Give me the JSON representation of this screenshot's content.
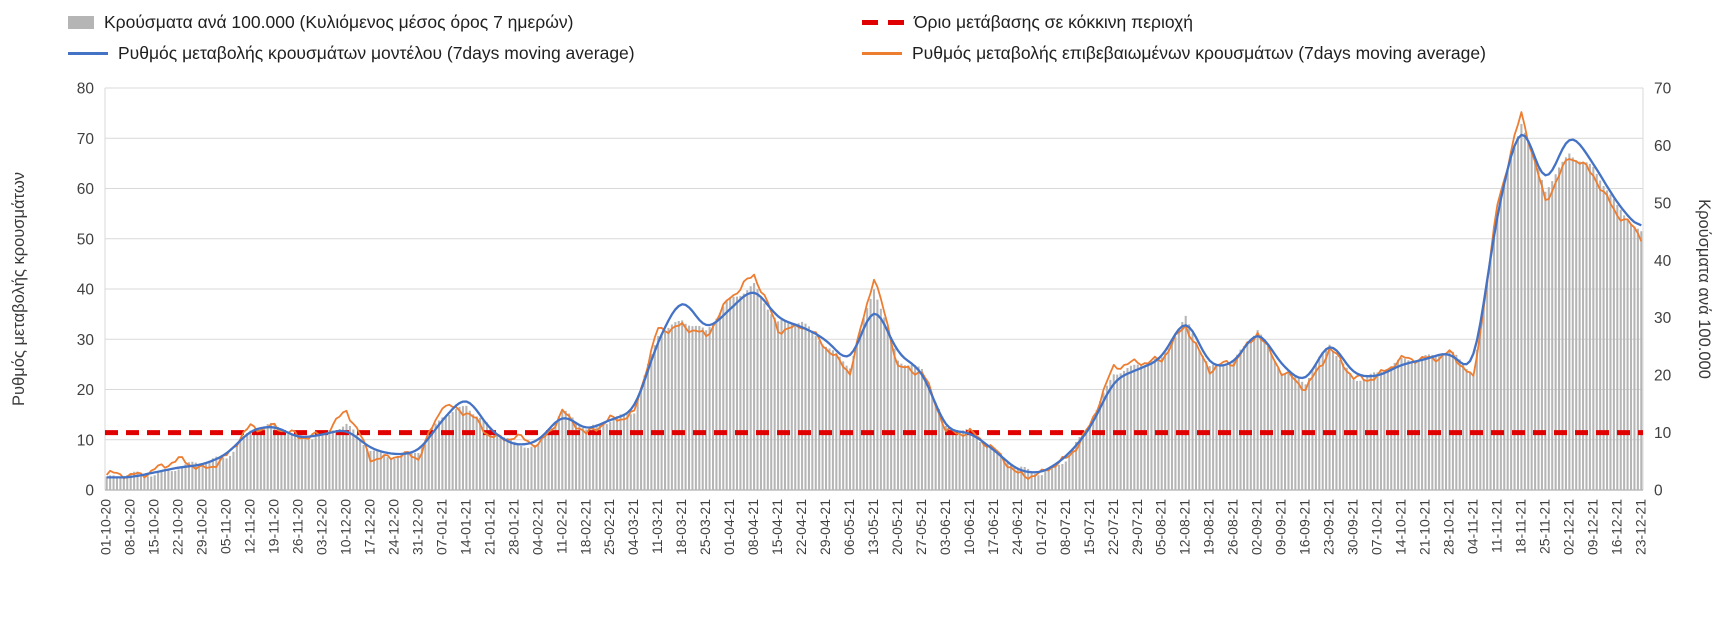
{
  "chart_data": {
    "type": "bar+line",
    "legend_position": "top",
    "grid": true,
    "x_tick_labels": [
      "01-10-20",
      "08-10-20",
      "15-10-20",
      "22-10-20",
      "29-10-20",
      "05-11-20",
      "12-11-20",
      "19-11-20",
      "26-11-20",
      "03-12-20",
      "10-12-20",
      "17-12-20",
      "24-12-20",
      "31-12-20",
      "07-01-21",
      "14-01-21",
      "21-01-21",
      "28-01-21",
      "04-02-21",
      "11-02-21",
      "18-02-21",
      "25-02-21",
      "04-03-21",
      "11-03-21",
      "18-03-21",
      "25-03-21",
      "01-04-21",
      "08-04-21",
      "15-04-21",
      "22-04-21",
      "29-04-21",
      "06-05-21",
      "13-05-21",
      "20-05-21",
      "27-05-21",
      "03-06-21",
      "10-06-21",
      "17-06-21",
      "24-06-21",
      "01-07-21",
      "08-07-21",
      "15-07-21",
      "22-07-21",
      "29-07-21",
      "05-08-21",
      "12-08-21",
      "19-08-21",
      "26-08-21",
      "02-09-21",
      "09-09-21",
      "16-09-21",
      "23-09-21",
      "30-09-21",
      "07-10-21",
      "14-10-21",
      "21-10-21",
      "28-10-21",
      "04-11-21",
      "11-11-21",
      "18-11-21",
      "25-11-21",
      "02-12-21",
      "09-12-21",
      "16-12-21",
      "23-12-21"
    ],
    "left_axis": {
      "label": "Ρυθμός μεταβολής κρουσμάτων",
      "min": 0,
      "max": 80,
      "step": 10,
      "ticks": [
        0,
        10,
        20,
        30,
        40,
        50,
        60,
        70,
        80
      ]
    },
    "right_axis": {
      "label": "Κρούσματα ανά 100.000",
      "min": 0,
      "max": 70,
      "step": 10,
      "ticks": [
        0,
        10,
        20,
        30,
        40,
        50,
        60,
        70
      ]
    },
    "threshold": {
      "label": "Όριο μετάβασης σε κόκκινη περιοχή",
      "value_right_axis": 10,
      "color": "#e00000"
    },
    "series": [
      {
        "name": "Κρούσματα ανά 100.000 (Κυλιόμενος μέσος όρος 7 ημερών)",
        "type": "bar",
        "axis": "right",
        "color": "#b5b5b5",
        "values": [
          2,
          2.5,
          3,
          4,
          4.5,
          6,
          10.5,
          11,
          9,
          10,
          11,
          7,
          6,
          6.5,
          13,
          15,
          10.5,
          8,
          8,
          13.5,
          10.5,
          12.5,
          13.5,
          27,
          30,
          27.5,
          33,
          36,
          29,
          29,
          25.5,
          21.5,
          35,
          23,
          21,
          10.5,
          10.5,
          7,
          3.5,
          3,
          5.5,
          11,
          20.5,
          22,
          22.5,
          30,
          21.5,
          22,
          28,
          21,
          18.5,
          25.5,
          19.5,
          20,
          22.5,
          23.5,
          24,
          20,
          49,
          64,
          52,
          59,
          56,
          49,
          45
        ]
      },
      {
        "name": "Ρυθμός μεταβολής κρουσμάτων μοντέλου (7days moving average)",
        "type": "line",
        "axis": "left",
        "color": "#4472c4",
        "values": [
          2.5,
          2.5,
          3.5,
          4.5,
          5,
          7,
          12,
          12.8,
          10.3,
          11,
          12.2,
          8.2,
          7,
          7.5,
          14,
          19,
          11.8,
          8.8,
          9.5,
          15.3,
          11.8,
          14,
          15.5,
          30,
          38.8,
          31.5,
          36,
          40.5,
          34,
          32.5,
          30,
          24.8,
          37.8,
          26.8,
          24,
          11.8,
          11.5,
          8,
          3.8,
          3.3,
          6.5,
          12,
          22,
          24,
          26,
          35,
          24.5,
          25,
          32.3,
          24.8,
          21,
          30.3,
          22.8,
          22.5,
          25,
          26,
          27.6,
          22.8,
          56,
          74.5,
          59.5,
          71.8,
          65,
          57,
          51.5
        ]
      },
      {
        "name": "Ρυθμός μεταβολής επιβεβαιωμένων κρουσμάτων (7days moving average)",
        "type": "line",
        "axis": "left",
        "color": "#ed7d31",
        "values": [
          3,
          2.5,
          4.5,
          5.5,
          4.5,
          6.5,
          12.5,
          13,
          10,
          11.5,
          15.5,
          6.5,
          7,
          6,
          17.5,
          15,
          11,
          10.5,
          8.5,
          16,
          10.5,
          14.5,
          15,
          32,
          33,
          30,
          39,
          42.5,
          32,
          33,
          28,
          24,
          42,
          25,
          23.5,
          11.5,
          12,
          7.5,
          3.5,
          3,
          6,
          13,
          24,
          26,
          25.5,
          33,
          24,
          25,
          32,
          23,
          20.5,
          28,
          22,
          23,
          25.5,
          26.5,
          27,
          22,
          57,
          74.5,
          58,
          66,
          63,
          55,
          50
        ]
      }
    ]
  }
}
